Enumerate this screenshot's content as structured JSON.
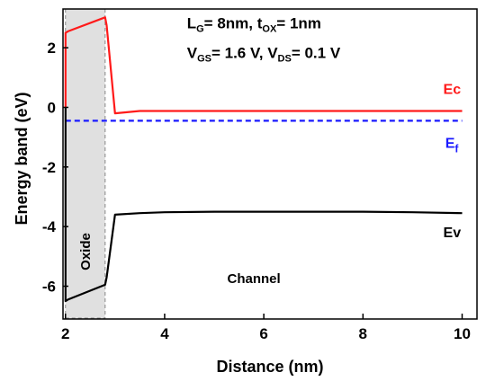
{
  "chart_data": {
    "type": "line",
    "xlabel": "Distance (nm)",
    "ylabel": "Energy band (eV)",
    "xlim": [
      1.95,
      10.3
    ],
    "ylim": [
      -7.1,
      3.3
    ],
    "xticks": [
      2,
      4,
      6,
      8,
      10
    ],
    "yticks": [
      2,
      0,
      -2,
      -4,
      -6
    ],
    "grid": false,
    "oxide_region": {
      "x": [
        2.0,
        2.8
      ],
      "label": "Oxide",
      "color": "#e0e0e0"
    },
    "annotations": {
      "line1": {
        "L": "L",
        "L_sub": "G",
        "L_val": "= 8nm, t",
        "t_sub": "OX",
        "t_val": "= 1nm"
      },
      "line2": {
        "V1": "V",
        "V1_sub": "GS",
        "V1_val": "= 1.6 V, V",
        "V2_sub": "DS",
        "V2_val": "= 0.1 V"
      },
      "channel": "Channel"
    },
    "series": [
      {
        "name": "Ec",
        "color": "#ff1a1a",
        "dash": false,
        "x": [
          2.0,
          2.0,
          2.05,
          2.8,
          2.83,
          3.0,
          3.5,
          4.0,
          5.0,
          6.0,
          7.0,
          8.0,
          9.0,
          10.0
        ],
        "y": [
          0.0,
          2.5,
          2.55,
          3.02,
          2.75,
          -0.2,
          -0.12,
          -0.12,
          -0.12,
          -0.12,
          -0.12,
          -0.12,
          -0.12,
          -0.12
        ]
      },
      {
        "name": "E",
        "name_sub": "f",
        "color": "#1a1aff",
        "dash": true,
        "x": [
          2.0,
          3.0,
          4.0,
          5.0,
          6.0,
          7.0,
          8.0,
          9.0,
          10.0
        ],
        "y": [
          -0.45,
          -0.45,
          -0.45,
          -0.45,
          -0.45,
          -0.45,
          -0.45,
          -0.45,
          -0.45
        ]
      },
      {
        "name": "Ev",
        "color": "#000000",
        "dash": false,
        "x": [
          2.0,
          2.0,
          2.05,
          2.8,
          2.83,
          3.0,
          3.5,
          4.0,
          5.0,
          6.0,
          7.0,
          8.0,
          9.0,
          10.0
        ],
        "y": [
          0.0,
          -6.5,
          -6.45,
          -5.95,
          -5.7,
          -3.6,
          -3.55,
          -3.52,
          -3.5,
          -3.5,
          -3.5,
          -3.5,
          -3.52,
          -3.55
        ]
      }
    ]
  }
}
